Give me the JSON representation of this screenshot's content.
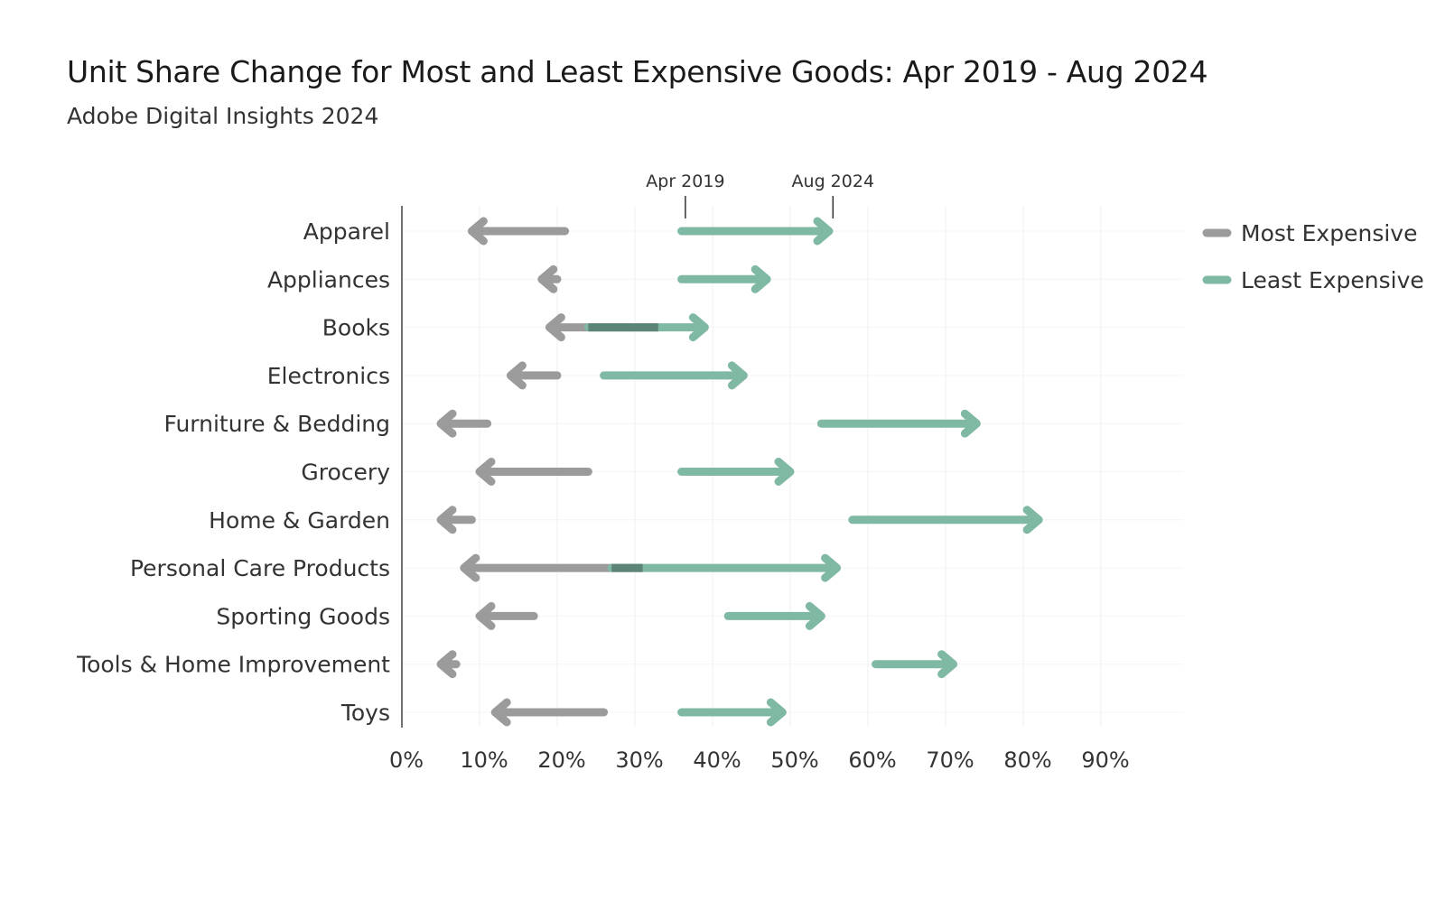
{
  "chart_data": {
    "type": "arrow-range",
    "title": "Unit Share Change for Most and Least Expensive Goods: Apr 2019 - Aug 2024",
    "subtitle": "Adobe Digital Insights 2024",
    "xlabel": "",
    "ylabel": "",
    "xlim": [
      0,
      100
    ],
    "x_ticks": [
      "0%",
      "10%",
      "20%",
      "30%",
      "40%",
      "50%",
      "60%",
      "70%",
      "80%",
      "90%"
    ],
    "x_tick_values": [
      0,
      10,
      20,
      30,
      40,
      50,
      60,
      70,
      80,
      90
    ],
    "annotations": [
      {
        "label": "Apr 2019",
        "x": 36.5
      },
      {
        "label": "Aug 2024",
        "x": 55.5
      }
    ],
    "categories": [
      "Apparel",
      "Appliances",
      "Books",
      "Electronics",
      "Furniture & Bedding",
      "Grocery",
      "Home & Garden",
      "Personal Care Products",
      "Sporting Goods",
      "Tools & Home Improvement",
      "Toys"
    ],
    "series": [
      {
        "name": "Most Expensive",
        "color": "#9b9b9b",
        "start": [
          21,
          20,
          33,
          20,
          11,
          24,
          9,
          31,
          17,
          7,
          26
        ],
        "end": [
          9,
          18,
          19,
          14,
          5,
          10,
          5,
          8,
          10,
          5,
          12
        ]
      },
      {
        "name": "Least Expensive",
        "color": "#7fb8a3",
        "start": [
          36,
          36,
          24,
          26,
          54,
          36,
          58,
          27,
          42,
          61,
          36
        ],
        "end": [
          55,
          47,
          39,
          44,
          74,
          50,
          82,
          56,
          54,
          71,
          49
        ]
      }
    ],
    "overlap_color": "#5d8577",
    "legend": {
      "position": "top-right",
      "items": [
        "Most Expensive",
        "Least Expensive"
      ]
    },
    "grid": true
  }
}
